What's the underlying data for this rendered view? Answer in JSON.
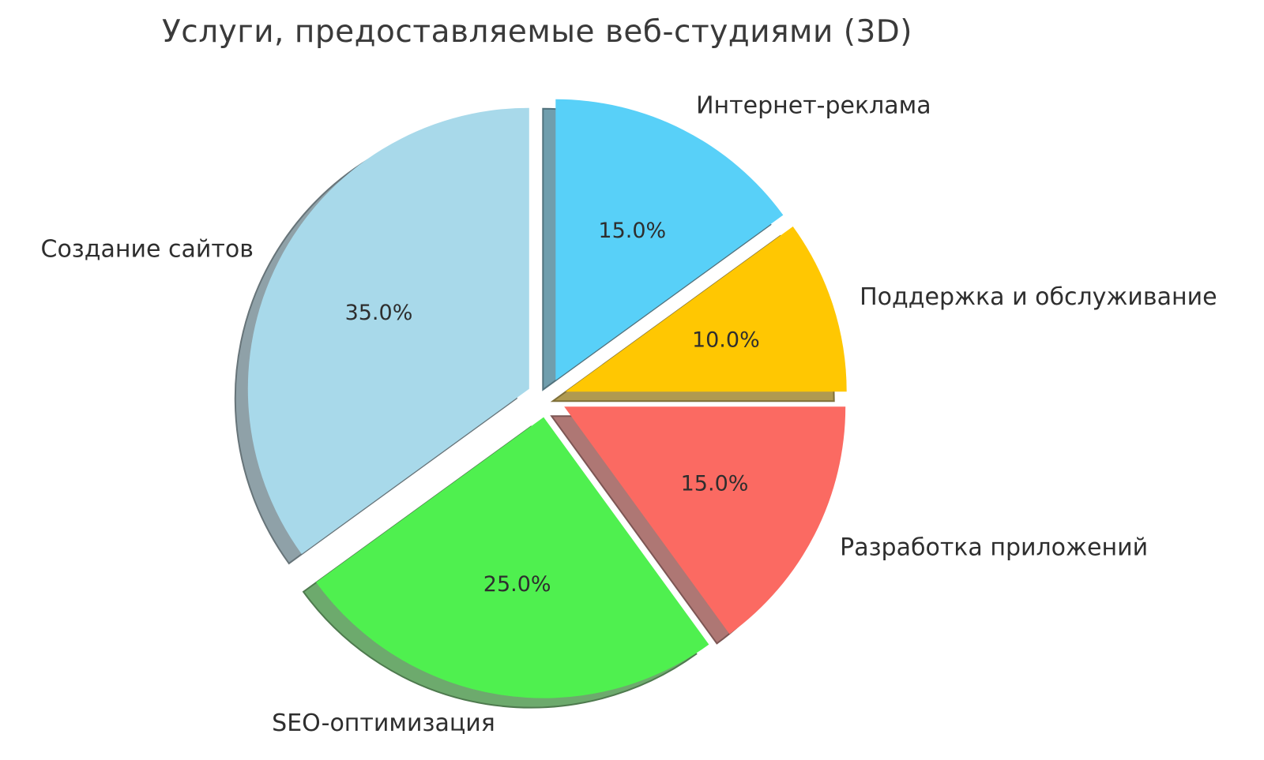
{
  "chart_data": {
    "type": "pie",
    "title": "Услуги, предоставляемые веб-студиями (3D)",
    "slices": [
      {
        "label": "Интернет-реклама",
        "value": 15.0,
        "pct_label": "15.0%",
        "color": "#58D0F8"
      },
      {
        "label": "Поддержка и обслуживание",
        "value": 10.0,
        "pct_label": "10.0%",
        "color": "#FFC702"
      },
      {
        "label": "Разработка приложений",
        "value": 15.0,
        "pct_label": "15.0%",
        "color": "#FB6A62"
      },
      {
        "label": "SEO-оптимизация",
        "value": 25.0,
        "pct_label": "25.0%",
        "color": "#4FF04F"
      },
      {
        "label": "Создание сайтов",
        "value": 35.0,
        "pct_label": "35.0%",
        "color": "#A8D9EA"
      }
    ],
    "start_angle": "top",
    "direction": "clockwise",
    "explode_fraction": 0.07,
    "effect": "3d-shadow",
    "layout": {
      "pct_distance": 0.6,
      "label_distance": 1.1,
      "legend": "none",
      "background": "#ffffff",
      "text_color": "#2e2e2e"
    }
  }
}
